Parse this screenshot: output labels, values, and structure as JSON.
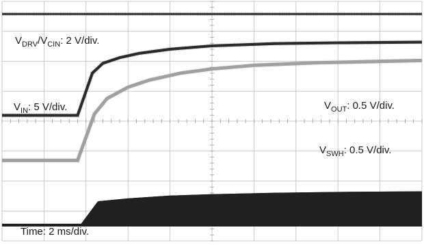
{
  "chart_data": {
    "type": "line",
    "title": "",
    "xlabel": "",
    "ylabel": "",
    "grid": true,
    "x_divisions": 10,
    "y_divisions": 8,
    "timebase": "Time: 2 ms/div.",
    "x_range_ms": [
      0,
      20
    ],
    "series": [
      {
        "name": "VDRV/VCIN",
        "label_main": "V",
        "label_sub": "DRV",
        "label_mid": "/V",
        "label_sub2": "CIN",
        "label_tail": ": 2 V/div.",
        "color": "#3a3a3a",
        "x_ms": [
          0,
          20
        ],
        "y_div": [
          7.55,
          7.55
        ],
        "thickness_div": 0.08
      },
      {
        "name": "VIN",
        "label_main": "V",
        "label_sub": "IN",
        "label_tail": ": 5 V/div.",
        "color": "#2a2a2a",
        "x_ms": [
          0,
          3.6,
          4.3,
          4.8,
          5.6,
          6.5,
          8,
          10,
          13,
          16,
          20
        ],
        "y_div": [
          3.95,
          3.95,
          5.45,
          5.8,
          6.0,
          6.15,
          6.3,
          6.42,
          6.5,
          6.53,
          6.55
        ],
        "thickness_div": 0.1
      },
      {
        "name": "VOUT",
        "label_main": "V",
        "label_sub": "OUT",
        "label_tail": ": 0.5 V/div.",
        "color": "#a0a0a0",
        "x_ms": [
          0,
          3.6,
          4.4,
          5.0,
          6.0,
          7.0,
          8.5,
          10,
          12,
          15,
          20
        ],
        "y_div": [
          2.35,
          2.35,
          4.0,
          4.55,
          4.95,
          5.2,
          5.45,
          5.6,
          5.73,
          5.82,
          5.9
        ],
        "thickness_div": 0.12
      },
      {
        "name": "VSWH",
        "label_main": "V",
        "label_sub": "SWH",
        "label_tail": ": 0.5 V/div.",
        "color": "#202020",
        "x_ms": [
          0,
          3.8,
          4.6,
          6,
          8,
          10,
          13,
          16,
          20
        ],
        "y_div": [
          0.05,
          0.05,
          0.85,
          0.95,
          1.05,
          1.1,
          1.15,
          1.18,
          1.2
        ],
        "thickness_div": 0.1,
        "filled_band": true
      }
    ]
  }
}
